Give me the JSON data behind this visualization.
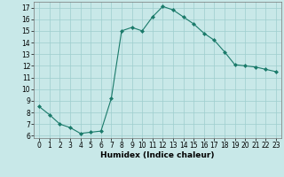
{
  "x": [
    0,
    1,
    2,
    3,
    4,
    5,
    6,
    7,
    8,
    9,
    10,
    11,
    12,
    13,
    14,
    15,
    16,
    17,
    18,
    19,
    20,
    21,
    22,
    23
  ],
  "y": [
    8.5,
    7.8,
    7.0,
    6.7,
    6.2,
    6.3,
    6.4,
    9.2,
    15.0,
    15.3,
    15.0,
    16.2,
    17.1,
    16.8,
    16.2,
    15.6,
    14.8,
    14.2,
    13.2,
    12.1,
    12.0,
    11.9,
    11.7,
    11.5
  ],
  "xlabel": "Humidex (Indice chaleur)",
  "xlim": [
    -0.5,
    23.5
  ],
  "ylim": [
    5.8,
    17.5
  ],
  "yticks": [
    6,
    7,
    8,
    9,
    10,
    11,
    12,
    13,
    14,
    15,
    16,
    17
  ],
  "xticks": [
    0,
    1,
    2,
    3,
    4,
    5,
    6,
    7,
    8,
    9,
    10,
    11,
    12,
    13,
    14,
    15,
    16,
    17,
    18,
    19,
    20,
    21,
    22,
    23
  ],
  "line_color": "#1a7a6a",
  "marker_color": "#1a7a6a",
  "bg_color": "#c8e8e8",
  "grid_color": "#9ecece",
  "label_fontsize": 6.5,
  "tick_fontsize": 5.5
}
